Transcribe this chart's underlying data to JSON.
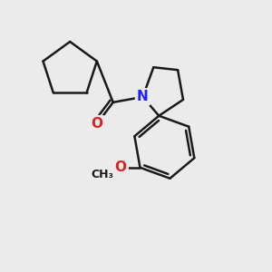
{
  "background_color": "#ebebeb",
  "bond_color": "#1a1a1a",
  "bond_width": 1.8,
  "N_color": "#2020ff",
  "O_color": "#dd2020",
  "font_size_N": 11,
  "font_size_O": 11,
  "font_size_ch3": 9,
  "figsize": [
    3.0,
    3.0
  ],
  "dpi": 100,
  "xlim": [
    0,
    10
  ],
  "ylim": [
    0,
    10
  ]
}
